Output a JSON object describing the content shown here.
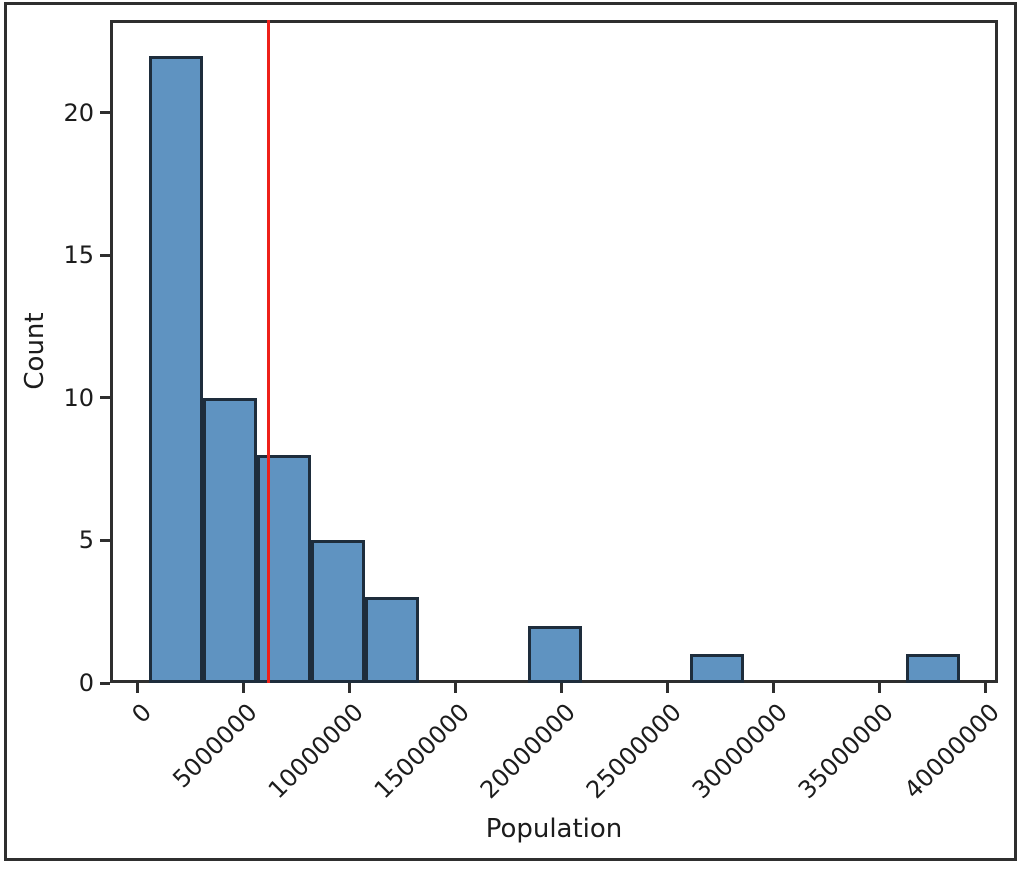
{
  "figure": {
    "background": "#ffffff",
    "border_color": "#2f2f2f"
  },
  "chart_data": {
    "type": "histogram",
    "title": "",
    "xlabel": "Population",
    "ylabel": "Count",
    "bar_color": "#5f93c1",
    "bar_edge_color": "#1e2d3c",
    "spine_color": "#2f2f2f",
    "grid": false,
    "legend": null,
    "bin_start": 584000,
    "bin_width": 2548000,
    "counts": [
      22,
      10,
      8,
      5,
      3,
      0,
      0,
      2,
      0,
      0,
      1,
      0,
      0,
      0,
      1
    ],
    "xlim": [
      -1274000,
      40610000
    ],
    "ylim": [
      0,
      23.25
    ],
    "xticks": [
      {
        "value": 0,
        "label": "0"
      },
      {
        "value": 5000000,
        "label": "5000000"
      },
      {
        "value": 10000000,
        "label": "10000000"
      },
      {
        "value": 15000000,
        "label": "15000000"
      },
      {
        "value": 20000000,
        "label": "20000000"
      },
      {
        "value": 25000000,
        "label": "25000000"
      },
      {
        "value": 30000000,
        "label": "30000000"
      },
      {
        "value": 35000000,
        "label": "35000000"
      },
      {
        "value": 40000000,
        "label": "40000000"
      }
    ],
    "yticks": [
      {
        "value": 0,
        "label": "0"
      },
      {
        "value": 5,
        "label": "5"
      },
      {
        "value": 10,
        "label": "10"
      },
      {
        "value": 15,
        "label": "15"
      },
      {
        "value": 20,
        "label": "20"
      }
    ],
    "reference_line": {
      "value": 6200000,
      "color": "#ee2019",
      "orientation": "vertical"
    }
  }
}
